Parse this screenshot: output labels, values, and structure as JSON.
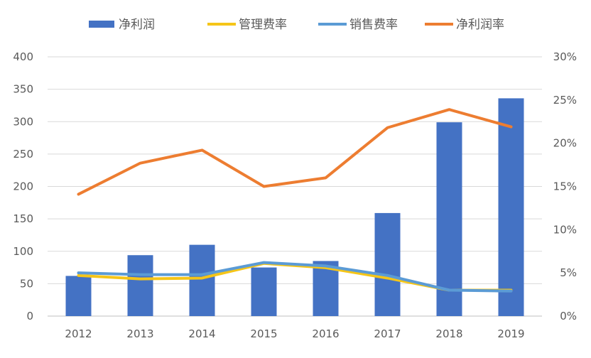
{
  "chart_data": {
    "type": "bar",
    "categories": [
      "2012",
      "2013",
      "2014",
      "2015",
      "2016",
      "2017",
      "2018",
      "2019"
    ],
    "series": [
      {
        "name": "净利润",
        "kind": "bar",
        "axis": "left",
        "color": "#4472C4",
        "values": [
          62,
          94,
          110,
          75,
          85,
          159,
          299,
          336
        ]
      },
      {
        "name": "管理费率",
        "kind": "line",
        "axis": "right",
        "color": "#F5C518",
        "values": [
          4.7,
          4.3,
          4.4,
          6.1,
          5.6,
          4.4,
          3.0,
          3.0
        ]
      },
      {
        "name": "销售费率",
        "kind": "line",
        "axis": "right",
        "color": "#5B9BD5",
        "values": [
          5.0,
          4.8,
          4.8,
          6.2,
          5.8,
          4.7,
          3.0,
          2.9
        ]
      },
      {
        "name": "净利润率",
        "kind": "line",
        "axis": "right",
        "color": "#ED7D31",
        "values": [
          14.1,
          17.7,
          19.2,
          15.0,
          16.0,
          21.8,
          23.9,
          21.9
        ]
      }
    ],
    "y_left": {
      "ylim": [
        0,
        400
      ],
      "ticks": [
        "0",
        "50",
        "100",
        "150",
        "200",
        "250",
        "300",
        "350",
        "400"
      ]
    },
    "y_right": {
      "ylim": [
        0,
        30
      ],
      "ticks": [
        "0%",
        "5%",
        "10%",
        "15%",
        "20%",
        "25%",
        "30%"
      ]
    },
    "grid": true,
    "legend": "top"
  }
}
